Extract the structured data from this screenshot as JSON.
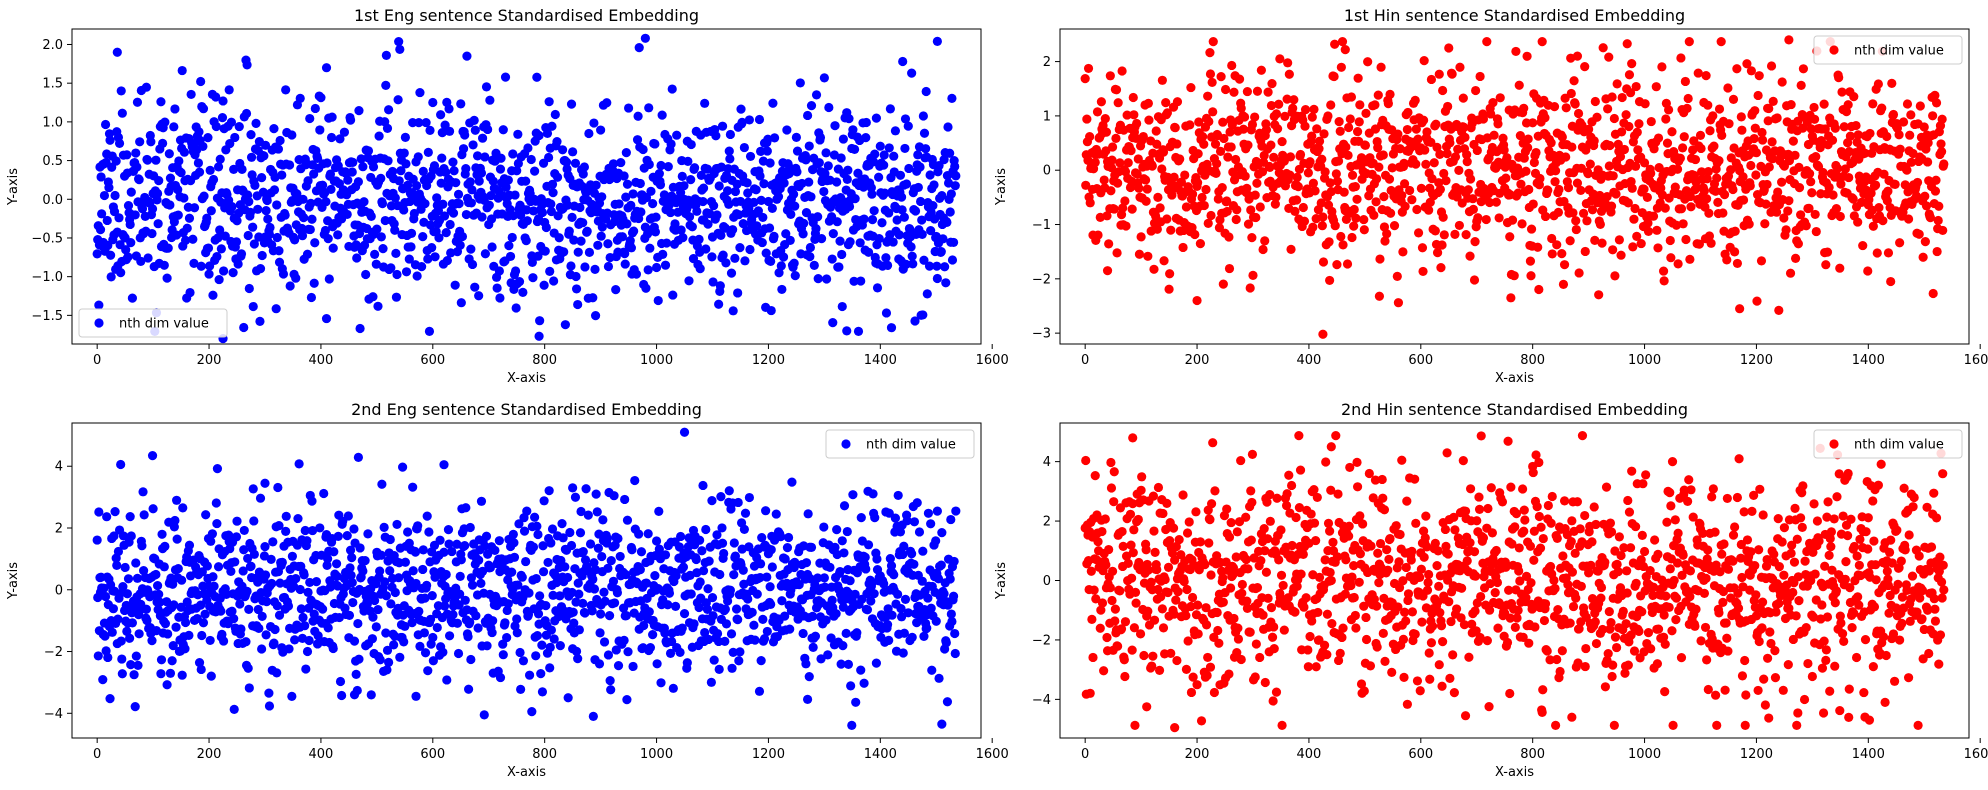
{
  "chart_data": [
    {
      "type": "scatter",
      "title": "1st Eng sentence Standardised Embedding",
      "xlabel": "X-axis",
      "ylabel": "Y-axis",
      "xlim": [
        -45,
        1580
      ],
      "ylim": [
        -1.87,
        2.2
      ],
      "xticks": [
        0,
        200,
        400,
        600,
        800,
        1000,
        1200,
        1400,
        1600
      ],
      "yticks": [
        -1.5,
        -1.0,
        -0.5,
        0.0,
        0.5,
        1.0,
        1.5,
        2.0
      ],
      "ytick_labels": [
        "−1.5",
        "−1.0",
        "−0.5",
        "0.0",
        "0.5",
        "1.0",
        "1.5",
        "2.0"
      ],
      "legend": {
        "label": "nth dim value",
        "position": "lower-left"
      },
      "color": "#0000ff",
      "n_points": 1536,
      "sd": 0.62,
      "seed": 11,
      "highlights": [
        [
          980,
          2.08
        ],
        [
          1502,
          2.04
        ],
        [
          36,
          1.9
        ],
        [
          225,
          -1.8
        ],
        [
          790,
          -1.77
        ],
        [
          1340,
          -1.7
        ],
        [
          470,
          -1.67
        ],
        [
          410,
          1.7
        ],
        [
          1440,
          1.78
        ]
      ]
    },
    {
      "type": "scatter",
      "title": "1st Hin sentence Standardised Embedding",
      "xlabel": "X-axis",
      "ylabel": "Y-axis",
      "xlim": [
        -45,
        1580
      ],
      "ylim": [
        -3.2,
        2.6
      ],
      "xticks": [
        0,
        200,
        400,
        600,
        800,
        1000,
        1200,
        1400,
        1600
      ],
      "yticks": [
        -3,
        -2,
        -1,
        0,
        1,
        2
      ],
      "ytick_labels": [
        "−3",
        "−2",
        "−1",
        "0",
        "1",
        "2"
      ],
      "legend": {
        "label": "nth dim value",
        "position": "top-right"
      },
      "color": "#ff0000",
      "n_points": 1536,
      "sd": 0.85,
      "seed": 23,
      "highlights": [
        [
          425,
          -3.02
        ],
        [
          200,
          -2.4
        ],
        [
          1170,
          -2.55
        ],
        [
          1440,
          -2.05
        ],
        [
          1258,
          2.4
        ],
        [
          465,
          2.22
        ],
        [
          880,
          2.1
        ],
        [
          40,
          -1.85
        ]
      ]
    },
    {
      "type": "scatter",
      "title": "2nd Eng sentence Standardised Embedding",
      "xlabel": "X-axis",
      "ylabel": "Y-axis",
      "xlim": [
        -45,
        1580
      ],
      "ylim": [
        -4.8,
        5.4
      ],
      "xticks": [
        0,
        200,
        400,
        600,
        800,
        1000,
        1200,
        1400,
        1600
      ],
      "yticks": [
        -4,
        -2,
        0,
        2,
        4
      ],
      "ytick_labels": [
        "−4",
        "−2",
        "0",
        "2",
        "4"
      ],
      "legend": {
        "label": "nth dim value",
        "position": "top-right"
      },
      "color": "#0000ff",
      "n_points": 1536,
      "sd": 1.4,
      "seed": 37,
      "highlights": [
        [
          1050,
          5.1
        ],
        [
          620,
          4.05
        ],
        [
          1510,
          -4.35
        ],
        [
          300,
          3.45
        ],
        [
          460,
          -3.4
        ],
        [
          1270,
          -3.55
        ],
        [
          850,
          3.3
        ],
        [
          570,
          -3.45
        ]
      ]
    },
    {
      "type": "scatter",
      "title": "2nd Hin sentence Standardised Embedding",
      "xlabel": "X-axis",
      "ylabel": "Y-axis",
      "xlim": [
        -45,
        1580
      ],
      "ylim": [
        -5.3,
        5.3
      ],
      "xticks": [
        0,
        200,
        400,
        600,
        800,
        1000,
        1200,
        1400,
        1600
      ],
      "yticks": [
        -4,
        -2,
        0,
        2,
        4
      ],
      "ytick_labels": [
        "−4",
        "−2",
        "0",
        "2",
        "4"
      ],
      "legend": {
        "label": "nth dim value",
        "position": "top-right"
      },
      "color": "#ff0000",
      "n_points": 1536,
      "sd": 1.75,
      "seed": 53,
      "highlights": [
        [
          85,
          4.8
        ],
        [
          160,
          -4.95
        ],
        [
          1430,
          -4.1
        ],
        [
          440,
          4.5
        ],
        [
          870,
          -4.6
        ],
        [
          680,
          -4.55
        ],
        [
          110,
          -4.25
        ],
        [
          1050,
          4.0
        ]
      ]
    }
  ]
}
